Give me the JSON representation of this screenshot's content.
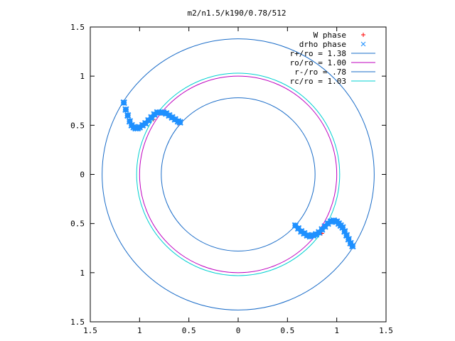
{
  "chart_data": {
    "type": "scatter",
    "title": "m2/n1.5/k190/0.78/512",
    "xlim": [
      -1.5,
      1.5
    ],
    "ylim": [
      -1.5,
      1.5
    ],
    "x_ticks": [
      -1.5,
      -1,
      -0.5,
      0,
      0.5,
      1,
      1.5
    ],
    "x_tick_labels": [
      "1.5",
      "1",
      "0.5",
      "0",
      "0.5",
      "1",
      "1.5"
    ],
    "y_ticks": [
      1.5,
      1,
      0.5,
      0,
      -0.5,
      -1,
      -1.5
    ],
    "y_tick_labels": [
      "1.5",
      "1",
      "0.5",
      "0",
      "0.5",
      "1",
      "1.5"
    ],
    "grid": false,
    "legend_position": "top-right",
    "series": [
      {
        "name": "W phase",
        "kind": "points",
        "marker": "plus",
        "color": "#ff0000",
        "x": [
          -1.16,
          -1.08,
          -0.86,
          -0.78,
          -0.6,
          0.58,
          0.75,
          0.85,
          1.02,
          1.15
        ],
        "y": [
          0.73,
          0.5,
          0.56,
          0.62,
          0.52,
          -0.52,
          -0.62,
          -0.6,
          -0.48,
          -0.73
        ]
      },
      {
        "name": "drho phase",
        "kind": "points",
        "marker": "x",
        "color": "#1e90ff",
        "x": [
          -1.16,
          -1.14,
          -1.12,
          -1.1,
          -1.08,
          -1.06,
          -1.04,
          -1.02,
          -1.0,
          -0.97,
          -0.94,
          -0.91,
          -0.88,
          -0.85,
          -0.82,
          -0.79,
          -0.76,
          -0.73,
          -0.7,
          -0.67,
          -0.64,
          -0.61,
          -0.59,
          0.58,
          0.61,
          0.64,
          0.67,
          0.7,
          0.73,
          0.76,
          0.79,
          0.82,
          0.85,
          0.88,
          0.91,
          0.94,
          0.97,
          1.0,
          1.02,
          1.04,
          1.06,
          1.08,
          1.1,
          1.12,
          1.14,
          1.16
        ],
        "y": [
          0.73,
          0.66,
          0.6,
          0.54,
          0.5,
          0.48,
          0.47,
          0.47,
          0.48,
          0.5,
          0.52,
          0.55,
          0.58,
          0.61,
          0.63,
          0.63,
          0.63,
          0.62,
          0.6,
          0.58,
          0.56,
          0.54,
          0.53,
          -0.52,
          -0.55,
          -0.58,
          -0.6,
          -0.62,
          -0.63,
          -0.62,
          -0.61,
          -0.59,
          -0.56,
          -0.53,
          -0.5,
          -0.48,
          -0.47,
          -0.48,
          -0.5,
          -0.52,
          -0.54,
          -0.58,
          -0.62,
          -0.66,
          -0.7,
          -0.73
        ]
      },
      {
        "name": "r+/ro = 1.38",
        "kind": "circle",
        "radius": 1.38,
        "color": "#1a6cc8"
      },
      {
        "name": "ro/ro = 1.00",
        "kind": "circle",
        "radius": 1.0,
        "color": "#bf00bf"
      },
      {
        "name": "r-/ro = .78",
        "kind": "circle",
        "radius": 0.78,
        "color": "#1a6cc8"
      },
      {
        "name": "rc/ro = 1.03",
        "kind": "circle",
        "radius": 1.03,
        "color": "#00d0d0"
      }
    ]
  }
}
